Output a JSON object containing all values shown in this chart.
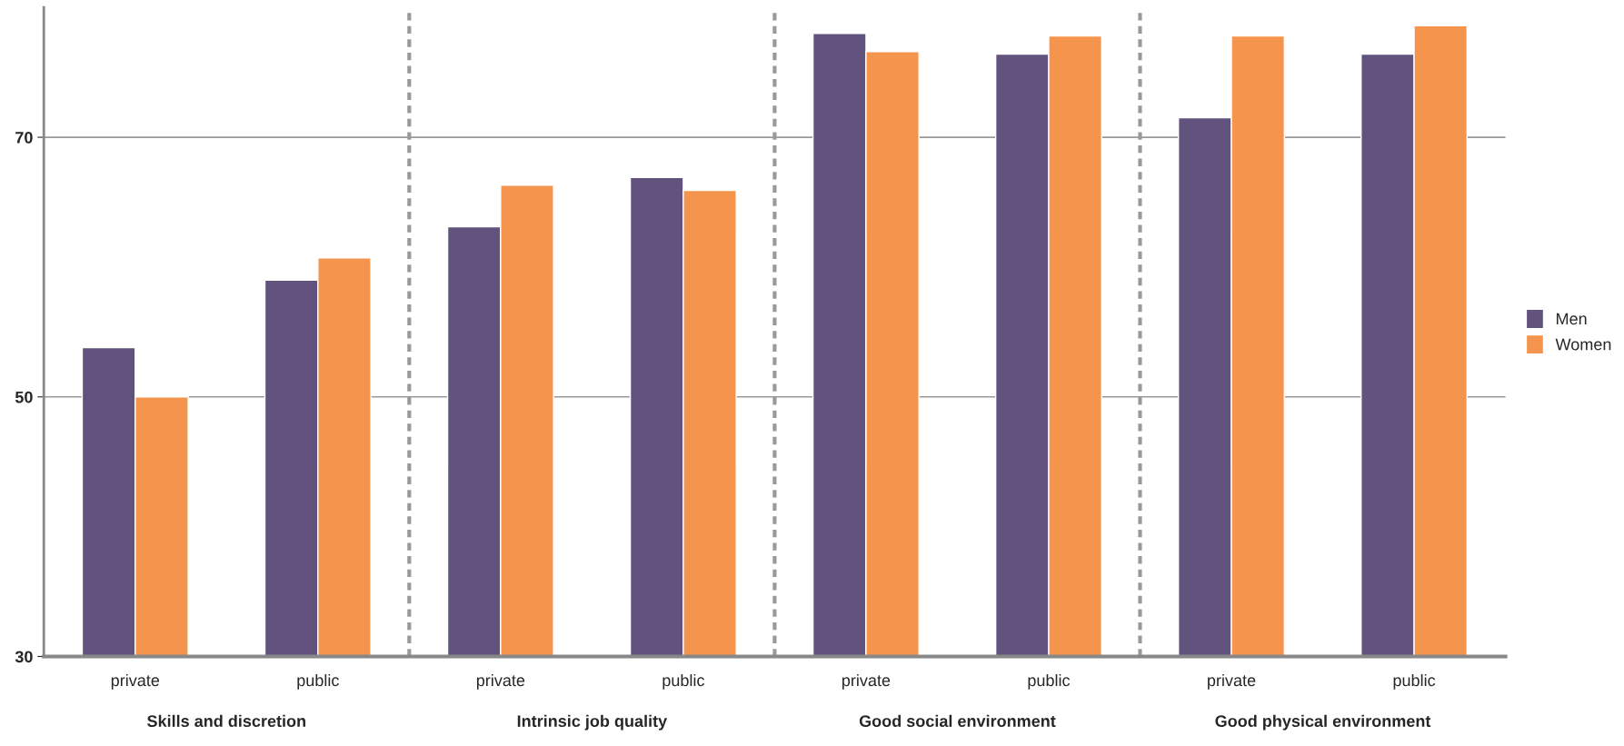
{
  "chart_data": {
    "type": "bar",
    "categories": [
      "private",
      "public",
      "private",
      "public",
      "private",
      "public",
      "private",
      "public"
    ],
    "series": [
      {
        "name": "Men",
        "color": "#62527e",
        "values": [
          53.8,
          59.0,
          63.1,
          66.9,
          78.0,
          76.4,
          71.5,
          76.4
        ]
      },
      {
        "name": "Women",
        "color": "#f5954d",
        "values": [
          50.0,
          60.7,
          66.3,
          65.9,
          76.6,
          77.8,
          77.8,
          78.6
        ]
      }
    ],
    "ylim": [
      30,
      80
    ],
    "yticks": [
      30,
      50,
      70
    ],
    "grid": "y",
    "legend": "right",
    "annotations": [
      "Skills and discretion",
      "Intrinsic job quality",
      "Good social environment",
      "Good physical environment"
    ]
  }
}
